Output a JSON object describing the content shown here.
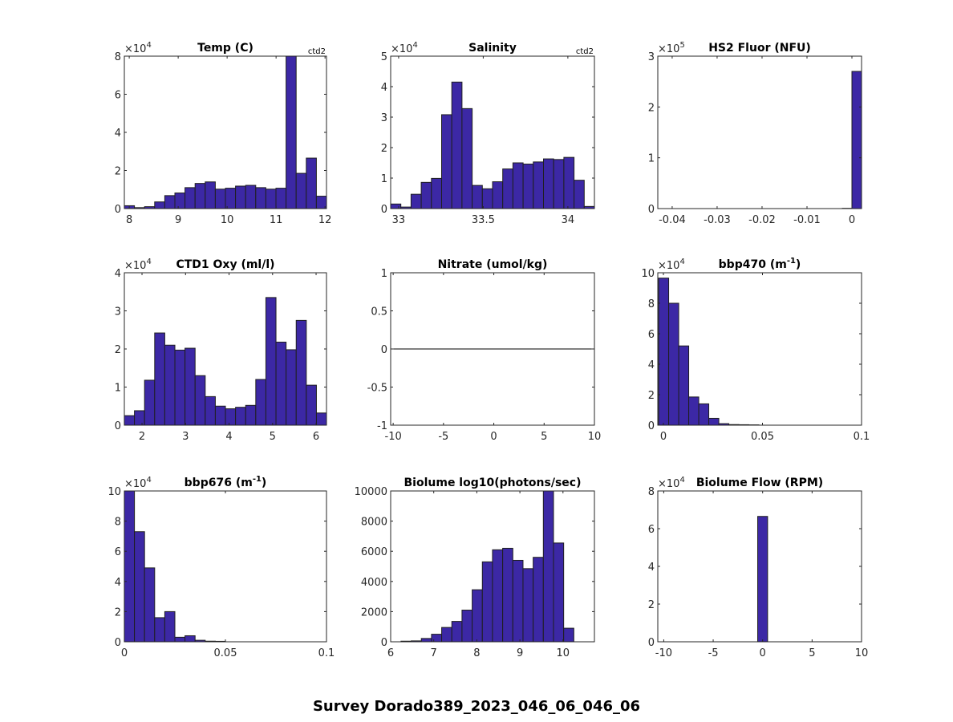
{
  "figure_title": "Survey Dorado389_2023_046_06_046_06",
  "colors": {
    "bar_fill": "#3c28a5",
    "bar_edge": "#1f1f1f",
    "axes": "#262626"
  },
  "chart_data": [
    {
      "type": "bar",
      "title": "Temp (C)",
      "title_sup": "",
      "title_after": "",
      "corner_label": "ctd2",
      "mult_base": "×10",
      "mult_exp": "4",
      "xlim": [
        7.9,
        12.03
      ],
      "ylim": [
        0,
        8
      ],
      "xticks": [
        8,
        9,
        10,
        11,
        12
      ],
      "xtick_labels": [
        "8",
        "9",
        "10",
        "11",
        "12"
      ],
      "yticks": [
        0,
        2,
        4,
        6,
        8
      ],
      "ytick_labels": [
        "0",
        "2",
        "4",
        "6",
        "8"
      ],
      "bin_start": 7.9,
      "bin_width": 0.2065,
      "values": [
        0.15,
        0.05,
        0.1,
        0.35,
        0.68,
        0.82,
        1.1,
        1.32,
        1.4,
        1.02,
        1.07,
        1.18,
        1.22,
        1.1,
        1.02,
        1.07,
        8.0,
        1.85,
        2.65,
        0.65
      ]
    },
    {
      "type": "bar",
      "title": "Salinity",
      "title_sup": "",
      "title_after": "",
      "corner_label": "ctd2",
      "mult_base": "×10",
      "mult_exp": "4",
      "xlim": [
        32.953,
        34.157
      ],
      "ylim": [
        0,
        5
      ],
      "xticks": [
        33,
        33.5,
        34
      ],
      "xtick_labels": [
        "33",
        "33.5",
        "34"
      ],
      "yticks": [
        0,
        1,
        2,
        3,
        4,
        5
      ],
      "ytick_labels": [
        "0",
        "1",
        "2",
        "3",
        "4",
        "5"
      ],
      "bin_start": 32.953,
      "bin_width": 0.0602,
      "values": [
        0.15,
        0.05,
        0.47,
        0.86,
        0.99,
        3.08,
        4.15,
        3.28,
        0.76,
        0.65,
        0.88,
        1.3,
        1.5,
        1.46,
        1.53,
        1.63,
        1.61,
        1.68,
        0.93,
        0.07
      ]
    },
    {
      "type": "bar",
      "title": "HS2 Fluor (NFU)",
      "title_sup": "",
      "title_after": "",
      "corner_label": "",
      "mult_base": "×10",
      "mult_exp": "5",
      "xlim": [
        -0.0432,
        0.00214
      ],
      "ylim": [
        0,
        3
      ],
      "xticks": [
        -0.04,
        -0.03,
        -0.02,
        -0.01,
        0
      ],
      "xtick_labels": [
        "-0.04",
        "-0.03",
        "-0.02",
        "-0.01",
        "0"
      ],
      "yticks": [
        0,
        1,
        2,
        3
      ],
      "ytick_labels": [
        "0",
        "1",
        "2",
        "3"
      ],
      "bin_start": -0.00214,
      "bin_width": 0.00214,
      "values": [
        0.005,
        2.7
      ]
    },
    {
      "type": "bar",
      "title": "CTD1 Oxy (ml/l)",
      "title_sup": "",
      "title_after": "",
      "corner_label": "",
      "mult_base": "×10",
      "mult_exp": "4",
      "xlim": [
        1.594,
        6.239
      ],
      "ylim": [
        0,
        4
      ],
      "xticks": [
        2,
        3,
        4,
        5,
        6
      ],
      "xtick_labels": [
        "2",
        "3",
        "4",
        "5",
        "6"
      ],
      "yticks": [
        0,
        1,
        2,
        3,
        4
      ],
      "ytick_labels": [
        "0",
        "1",
        "2",
        "3",
        "4"
      ],
      "bin_start": 1.594,
      "bin_width": 0.2323,
      "values": [
        0.25,
        0.38,
        1.18,
        2.42,
        2.1,
        1.97,
        2.02,
        1.3,
        0.75,
        0.5,
        0.43,
        0.47,
        0.52,
        1.2,
        3.35,
        2.18,
        1.98,
        2.75,
        1.05,
        0.32
      ]
    },
    {
      "type": "line",
      "title": "Nitrate (umol/kg)",
      "title_sup": "",
      "title_after": "",
      "corner_label": "",
      "mult_base": "",
      "mult_exp": "",
      "xlim": [
        -10.25,
        10
      ],
      "ylim": [
        -1,
        1
      ],
      "xticks": [
        -10,
        -5,
        0,
        5,
        10
      ],
      "xtick_labels": [
        "-10",
        "-5",
        "0",
        "5",
        "10"
      ],
      "yticks": [
        -1,
        -0.5,
        0,
        0.5,
        1
      ],
      "ytick_labels": [
        "-1",
        "-0.5",
        "0",
        "0.5",
        "1"
      ],
      "line_x": [
        -10,
        9.75
      ],
      "line_y": [
        0,
        0
      ]
    },
    {
      "type": "bar",
      "title": "bbp470 (m",
      "title_sup": "-1",
      "title_after": ")",
      "corner_label": "",
      "mult_base": "×10",
      "mult_exp": "4",
      "xlim": [
        -0.00283,
        0.1
      ],
      "ylim": [
        0,
        10
      ],
      "xticks": [
        0,
        0.05,
        0.1
      ],
      "xtick_labels": [
        "0",
        "0.05",
        "0.1"
      ],
      "yticks": [
        0,
        2,
        4,
        6,
        8,
        10
      ],
      "ytick_labels": [
        "0",
        "2",
        "4",
        "6",
        "8",
        "10"
      ],
      "bin_start": -0.0024,
      "bin_width": 0.00506,
      "values": [
        9.65,
        8.0,
        5.2,
        1.85,
        1.4,
        0.45,
        0.1,
        0.04,
        0.03,
        0.02
      ]
    },
    {
      "type": "bar",
      "title": "bbp676 (m",
      "title_sup": "-1",
      "title_after": ")",
      "corner_label": "",
      "mult_base": "×10",
      "mult_exp": "4",
      "xlim": [
        0,
        0.1
      ],
      "ylim": [
        0,
        10
      ],
      "xticks": [
        0,
        0.05,
        0.1
      ],
      "xtick_labels": [
        "0",
        "0.05",
        "0.1"
      ],
      "yticks": [
        0,
        2,
        4,
        6,
        8,
        10
      ],
      "ytick_labels": [
        "0",
        "2",
        "4",
        "6",
        "8",
        "10"
      ],
      "bin_start": 0,
      "bin_width": 0.005,
      "values": [
        10.2,
        7.3,
        4.9,
        1.6,
        2.0,
        0.3,
        0.4,
        0.1,
        0.04,
        0.03
      ]
    },
    {
      "type": "bar",
      "title": "Biolume log10(photons/sec)",
      "title_sup": "",
      "title_after": "",
      "corner_label": "",
      "mult_base": "",
      "mult_exp": "",
      "xlim": [
        6,
        10.73
      ],
      "ylim": [
        0,
        10000
      ],
      "xticks": [
        6,
        7,
        8,
        9,
        10
      ],
      "xtick_labels": [
        "6",
        "7",
        "8",
        "9",
        "10"
      ],
      "yticks": [
        0,
        2000,
        4000,
        6000,
        8000,
        10000
      ],
      "ytick_labels": [
        "0",
        "2000",
        "4000",
        "6000",
        "8000",
        "10000"
      ],
      "bin_start": 6.24,
      "bin_width": 0.236,
      "values": [
        40,
        60,
        220,
        500,
        950,
        1350,
        2100,
        3450,
        5300,
        6100,
        6200,
        5400,
        4850,
        5600,
        10500,
        6550,
        900
      ]
    },
    {
      "type": "bar",
      "title": "Biolume Flow (RPM)",
      "title_sup": "",
      "title_after": "",
      "corner_label": "",
      "mult_base": "×10",
      "mult_exp": "4",
      "xlim": [
        -10.6,
        10
      ],
      "ylim": [
        0,
        8
      ],
      "xticks": [
        -10,
        -5,
        0,
        5,
        10
      ],
      "xtick_labels": [
        "-10",
        "-5",
        "0",
        "5",
        "10"
      ],
      "yticks": [
        0,
        2,
        4,
        6,
        8
      ],
      "ytick_labels": [
        "0",
        "2",
        "4",
        "6",
        "8"
      ],
      "bin_start": -0.5,
      "bin_width": 1,
      "values": [
        6.65
      ]
    }
  ]
}
